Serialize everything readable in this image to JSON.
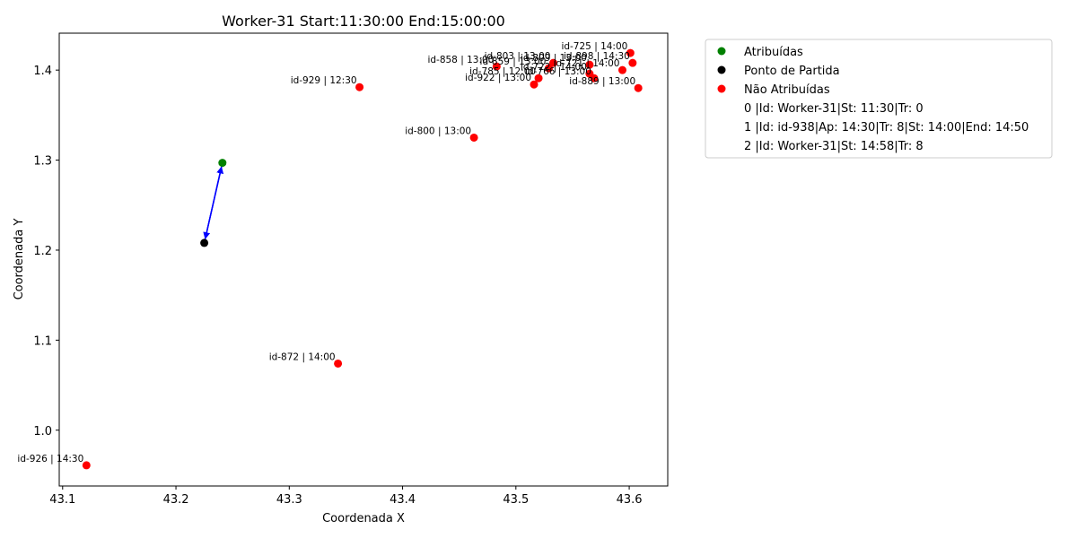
{
  "chart_data": {
    "type": "scatter",
    "title": "Worker-31 Start:11:30:00 End:15:00:00",
    "xlabel": "Coordenada X",
    "ylabel": "Coordenada Y",
    "xlim": [
      43.097,
      43.634
    ],
    "ylim": [
      0.938,
      1.441
    ],
    "xticks": [
      43.1,
      43.2,
      43.3,
      43.4,
      43.5,
      43.6
    ],
    "xtick_labels": [
      "43.1",
      "43.2",
      "43.3",
      "43.4",
      "43.5",
      "43.6"
    ],
    "yticks": [
      1.0,
      1.1,
      1.2,
      1.3,
      1.4
    ],
    "ytick_labels": [
      "1.0",
      "1.1",
      "1.2",
      "1.3",
      "1.4"
    ],
    "grid": false,
    "legend_position": "outside-right",
    "colors": {
      "assigned": "#008000",
      "start": "#000000",
      "unassigned": "#ff0000",
      "route": "#0000ff"
    },
    "series": [
      {
        "name": "Atribuídas",
        "color": "#008000",
        "points": [
          {
            "x": 43.241,
            "y": 1.297
          }
        ]
      },
      {
        "name": "Ponto de Partida",
        "color": "#000000",
        "points": [
          {
            "x": 43.225,
            "y": 1.208
          }
        ]
      },
      {
        "name": "Não Atribuídas",
        "color": "#ff0000",
        "points": [
          {
            "x": 43.601,
            "y": 1.419,
            "label": "id-725 | 14:00"
          },
          {
            "x": 43.603,
            "y": 1.408,
            "label": "id-898 | 14:30"
          },
          {
            "x": 43.594,
            "y": 1.4,
            "label": "id-721 | 14:00"
          },
          {
            "x": 43.608,
            "y": 1.38,
            "label": "id-889 | 13:00"
          },
          {
            "x": 43.533,
            "y": 1.408,
            "label": "id-803 | 13:00"
          },
          {
            "x": 43.565,
            "y": 1.406,
            "label": "id-809 | 13:00"
          },
          {
            "x": 43.529,
            "y": 1.402,
            "label": "id-859 | 13:00"
          },
          {
            "x": 43.483,
            "y": 1.404,
            "label": "id-858 | 13:00"
          },
          {
            "x": 43.565,
            "y": 1.396,
            "label": "id-722 | 14:00"
          },
          {
            "x": 43.569,
            "y": 1.391,
            "label": "id-766 | 13:00"
          },
          {
            "x": 43.52,
            "y": 1.391,
            "label": "id-785 | 12:00"
          },
          {
            "x": 43.516,
            "y": 1.384,
            "label": "id-922 | 13:00"
          },
          {
            "x": 43.362,
            "y": 1.381,
            "label": "id-929 | 12:30"
          },
          {
            "x": 43.463,
            "y": 1.325,
            "label": "id-800 | 13:00"
          },
          {
            "x": 43.343,
            "y": 1.074,
            "label": "id-872 | 14:00"
          },
          {
            "x": 43.121,
            "y": 0.961,
            "label": "id-926 | 14:30"
          }
        ]
      }
    ],
    "route": [
      {
        "from": [
          43.225,
          1.208
        ],
        "to": [
          43.241,
          1.297
        ]
      },
      {
        "from": [
          43.241,
          1.297
        ],
        "to": [
          43.225,
          1.208
        ]
      }
    ],
    "legend": {
      "markers": [
        {
          "text": "Atribuídas",
          "color": "#008000"
        },
        {
          "text": "Ponto de Partida",
          "color": "#000000"
        },
        {
          "text": "Não Atribuídas",
          "color": "#ff0000"
        }
      ],
      "entries": [
        "0 |Id: Worker-31|St: 11:30|Tr: 0",
        "1 |Id: id-938|Ap: 14:30|Tr: 8|St: 14:00|End: 14:50",
        "2 |Id: Worker-31|St: 14:58|Tr: 8"
      ]
    }
  }
}
